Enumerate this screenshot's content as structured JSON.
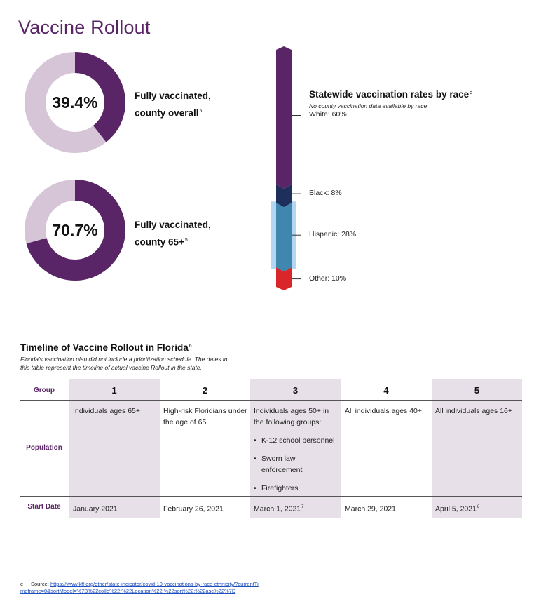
{
  "page": {
    "title": "Vaccine Rollout"
  },
  "donuts": [
    {
      "value": "39.4%",
      "fraction": 0.394,
      "label_line1": "Fully vaccinated,",
      "label_line2": "county overall",
      "footnote": "5",
      "fill_color": "#5a2566",
      "track_color": "#d5c5d6"
    },
    {
      "value": "70.7%",
      "fraction": 0.707,
      "label_line1": "Fully vaccinated,",
      "label_line2": "county 65+",
      "footnote": "5",
      "fill_color": "#5a2566",
      "track_color": "#d5c5d6"
    }
  ],
  "race": {
    "title": "Statewide vaccination rates by race",
    "title_footnote": "d",
    "note": "No county vaccination data available by race",
    "segments": [
      {
        "label": "White: 60%",
        "value": 60,
        "color": "#5a2566"
      },
      {
        "label": "Black: 8%",
        "value": 8,
        "color": "#1f2f5c"
      },
      {
        "label": "Hispanic: 28%",
        "value": 28,
        "color": "#3f87ae",
        "highlight": "#b5d6f3"
      },
      {
        "label": "Other: 10%",
        "value": 10,
        "color": "#d9262a"
      }
    ]
  },
  "timeline": {
    "title": "Timeline of Vaccine Rollout in Florida",
    "title_footnote": "6",
    "note": "Florida's vaccination plan did not include a prioritization schedule. The dates in this table represent the timeline of actual vaccine Rollout in the state.",
    "row_headers": {
      "group": "Group",
      "population": "Population",
      "start_date": "Start Date"
    },
    "columns": [
      {
        "group": "1",
        "population": "Individuals ages 65+",
        "start_date": "January 2021",
        "start_footnote": ""
      },
      {
        "group": "2",
        "population": "High-risk Floridians under the age of 65",
        "start_date": "February 26, 2021",
        "start_footnote": ""
      },
      {
        "group": "3",
        "population": "Individuals ages 50+ in the following groups:",
        "bullets": [
          "K-12 school personnel",
          "Sworn law enforcement",
          "Firefighters"
        ],
        "start_date": "March 1, 2021",
        "start_footnote": "7"
      },
      {
        "group": "4",
        "population": "All individuals ages 40+",
        "start_date": "March 29, 2021",
        "start_footnote": ""
      },
      {
        "group": "5",
        "population": "All individuals ages 16+",
        "start_date": "April 5, 2021",
        "start_footnote": "8"
      }
    ],
    "shade_color": "#e7e0e8"
  },
  "footnote": {
    "marker": "e",
    "prefix": "Source:",
    "link_text": "https://www.kff.org/other/state-indicator/covid-19-vaccinations-by-race-ethnicity/?currentTimeframe=0&sortModel=%7B%22colId%22:%22Location%22,%22sort%22:%22asc%22%7D"
  }
}
